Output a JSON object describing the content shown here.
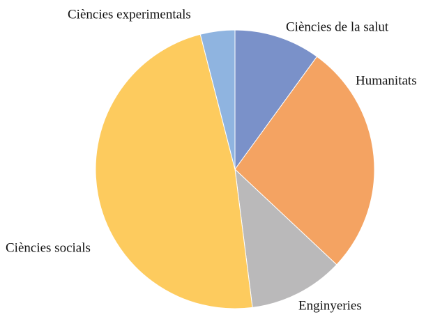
{
  "chart_data": {
    "type": "pie",
    "categories": [
      "Ciències de la salut",
      "Humanitats",
      "Enginyeries",
      "Ciències socials",
      "Ciències experimentals"
    ],
    "values": [
      10,
      27,
      11,
      48,
      4
    ],
    "colors": [
      "#7a91c9",
      "#f4a362",
      "#bab9ba",
      "#fdcb5e",
      "#8fb4e0"
    ]
  }
}
